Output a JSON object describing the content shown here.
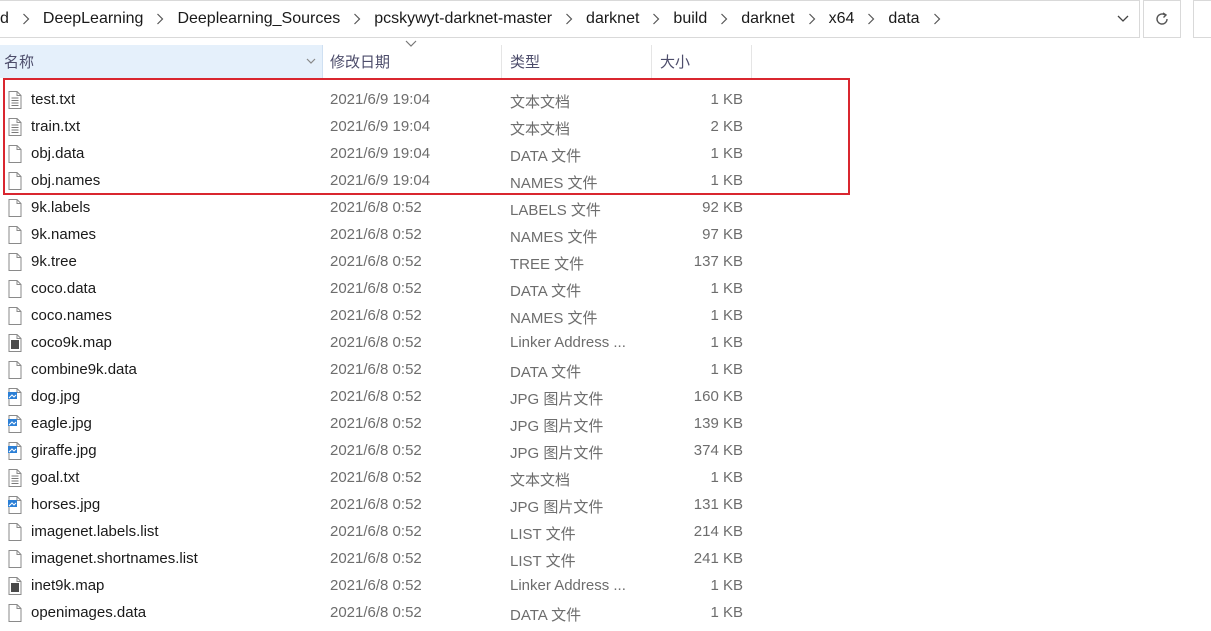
{
  "breadcrumb": [
    "d",
    "DeepLearning",
    "Deeplearning_Sources",
    "pcskywyt-darknet-master",
    "darknet",
    "build",
    "darknet",
    "x64",
    "data"
  ],
  "columns": {
    "name": "名称",
    "date": "修改日期",
    "type": "类型",
    "size": "大小"
  },
  "files": [
    {
      "name": "test.txt",
      "date": "2021/6/9 19:04",
      "type": "文本文档",
      "size": "1 KB",
      "icon": "text-file-icon"
    },
    {
      "name": "train.txt",
      "date": "2021/6/9 19:04",
      "type": "文本文档",
      "size": "2 KB",
      "icon": "text-file-icon"
    },
    {
      "name": "obj.data",
      "date": "2021/6/9 19:04",
      "type": "DATA 文件",
      "size": "1 KB",
      "icon": "blank-file-icon"
    },
    {
      "name": "obj.names",
      "date": "2021/6/9 19:04",
      "type": "NAMES 文件",
      "size": "1 KB",
      "icon": "blank-file-icon"
    },
    {
      "name": "9k.labels",
      "date": "2021/6/8 0:52",
      "type": "LABELS 文件",
      "size": "92 KB",
      "icon": "blank-file-icon"
    },
    {
      "name": "9k.names",
      "date": "2021/6/8 0:52",
      "type": "NAMES 文件",
      "size": "97 KB",
      "icon": "blank-file-icon"
    },
    {
      "name": "9k.tree",
      "date": "2021/6/8 0:52",
      "type": "TREE 文件",
      "size": "137 KB",
      "icon": "blank-file-icon"
    },
    {
      "name": "coco.data",
      "date": "2021/6/8 0:52",
      "type": "DATA 文件",
      "size": "1 KB",
      "icon": "blank-file-icon"
    },
    {
      "name": "coco.names",
      "date": "2021/6/8 0:52",
      "type": "NAMES 文件",
      "size": "1 KB",
      "icon": "blank-file-icon"
    },
    {
      "name": "coco9k.map",
      "date": "2021/6/8 0:52",
      "type": "Linker Address ...",
      "size": "1 KB",
      "icon": "map-file-icon"
    },
    {
      "name": "combine9k.data",
      "date": "2021/6/8 0:52",
      "type": "DATA 文件",
      "size": "1 KB",
      "icon": "blank-file-icon"
    },
    {
      "name": "dog.jpg",
      "date": "2021/6/8 0:52",
      "type": "JPG 图片文件",
      "size": "160 KB",
      "icon": "image-file-icon"
    },
    {
      "name": "eagle.jpg",
      "date": "2021/6/8 0:52",
      "type": "JPG 图片文件",
      "size": "139 KB",
      "icon": "image-file-icon"
    },
    {
      "name": "giraffe.jpg",
      "date": "2021/6/8 0:52",
      "type": "JPG 图片文件",
      "size": "374 KB",
      "icon": "image-file-icon"
    },
    {
      "name": "goal.txt",
      "date": "2021/6/8 0:52",
      "type": "文本文档",
      "size": "1 KB",
      "icon": "text-file-icon"
    },
    {
      "name": "horses.jpg",
      "date": "2021/6/8 0:52",
      "type": "JPG 图片文件",
      "size": "131 KB",
      "icon": "image-file-icon"
    },
    {
      "name": "imagenet.labels.list",
      "date": "2021/6/8 0:52",
      "type": "LIST 文件",
      "size": "214 KB",
      "icon": "blank-file-icon"
    },
    {
      "name": "imagenet.shortnames.list",
      "date": "2021/6/8 0:52",
      "type": "LIST 文件",
      "size": "241 KB",
      "icon": "blank-file-icon"
    },
    {
      "name": "inet9k.map",
      "date": "2021/6/8 0:52",
      "type": "Linker Address ...",
      "size": "1 KB",
      "icon": "map-file-icon"
    },
    {
      "name": "openimages.data",
      "date": "2021/6/8 0:52",
      "type": "DATA 文件",
      "size": "1 KB",
      "icon": "blank-file-icon"
    }
  ],
  "colors": {
    "header_selected_bg": "#e5f0fb",
    "highlight_border": "#d9262f",
    "image_icon_blue": "#2b7fd6"
  }
}
